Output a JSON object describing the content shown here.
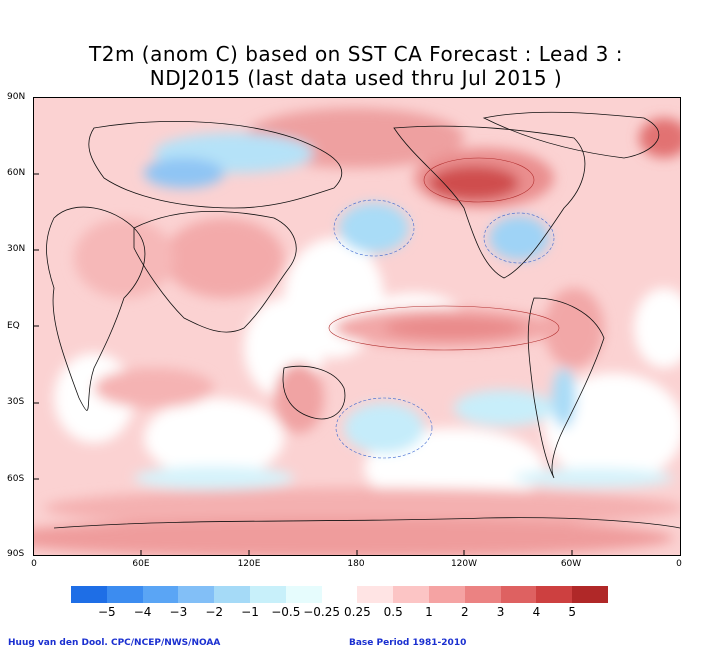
{
  "title": {
    "line1": "T2m (anom C) based on SST CA Forecast : Lead 3 :",
    "line2": "NDJ2015 (last data used thru Jul 2015 )"
  },
  "map": {
    "y_tick_labels": [
      "90N",
      "60N",
      "30N",
      "EQ",
      "30S",
      "60S",
      "90S"
    ],
    "x_tick_labels": [
      "0",
      "60E",
      "120E",
      "180",
      "120W",
      "60W",
      "0"
    ],
    "features": [
      {
        "name": "eastern-tropical-pacific-warm-anomaly",
        "level": 2
      },
      {
        "name": "alaska-nw-canada-warm-anomaly",
        "level": 4
      },
      {
        "name": "north-pacific-cold-anomaly",
        "level": -2
      },
      {
        "name": "eastern-us-cold-anomaly",
        "level": -2
      },
      {
        "name": "siberia-cold-anomaly",
        "level": -2
      },
      {
        "name": "antarctic-warm-anomaly",
        "level": 1
      },
      {
        "name": "southern-ocean-cold-anomaly",
        "level": -1
      }
    ]
  },
  "colorbar": {
    "colors": [
      "#1e6ee6",
      "#3c8cf0",
      "#5aa5f5",
      "#82bff7",
      "#a5daf7",
      "#c8f0fa",
      "#e6fcfd",
      "#ffffff",
      "#ffe4e4",
      "#fcc5c5",
      "#f5a3a3",
      "#eb8282",
      "#de6161",
      "#cd4040",
      "#b02828"
    ],
    "labels": [
      "−5",
      "−4",
      "−3",
      "−2",
      "−1",
      "−0.5",
      "−0.25",
      "0.25",
      "0.5",
      "1",
      "2",
      "3",
      "4",
      "5"
    ]
  },
  "footer": {
    "credit": "Huug van den Dool. CPC/NCEP/NWS/NOAA",
    "base_period": "Base Period 1981-2010"
  }
}
